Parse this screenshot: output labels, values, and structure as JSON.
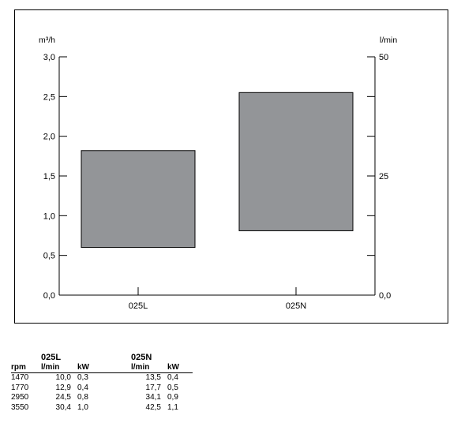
{
  "chart_data": {
    "type": "bar",
    "categories": [
      "025L",
      "025N"
    ],
    "ranges": [
      {
        "category": "025L",
        "min": 0.6,
        "max": 1.82
      },
      {
        "category": "025N",
        "min": 0.81,
        "max": 2.55
      }
    ],
    "left_axis": {
      "unit": "m³/h",
      "range": [
        0,
        3.0
      ],
      "tick_labels": [
        "0,0",
        "0,5",
        "1,0",
        "1,5",
        "2,0",
        "2,5",
        "3,0"
      ]
    },
    "right_axis": {
      "unit": "l/min",
      "range": [
        0,
        50
      ],
      "tick_labels": [
        "0,0",
        "25",
        "50"
      ]
    },
    "grid": false,
    "bar_color": "#939598"
  },
  "table": {
    "rpm_header": "rpm",
    "models": [
      {
        "name": "025L",
        "flow_unit": "l/min",
        "power_unit": "kW"
      },
      {
        "name": "025N",
        "flow_unit": "l/min",
        "power_unit": "kW"
      }
    ],
    "rows": [
      {
        "rpm": "1470",
        "l_flow": "10,0",
        "l_kw": "0,3",
        "n_flow": "13,5",
        "n_kw": "0,4"
      },
      {
        "rpm": "1770",
        "l_flow": "12,9",
        "l_kw": "0,4",
        "n_flow": "17,7",
        "n_kw": "0,5"
      },
      {
        "rpm": "2950",
        "l_flow": "24,5",
        "l_kw": "0,8",
        "n_flow": "34,1",
        "n_kw": "0,9"
      },
      {
        "rpm": "3550",
        "l_flow": "30,4",
        "l_kw": "1,0",
        "n_flow": "42,5",
        "n_kw": "1,1"
      }
    ]
  }
}
